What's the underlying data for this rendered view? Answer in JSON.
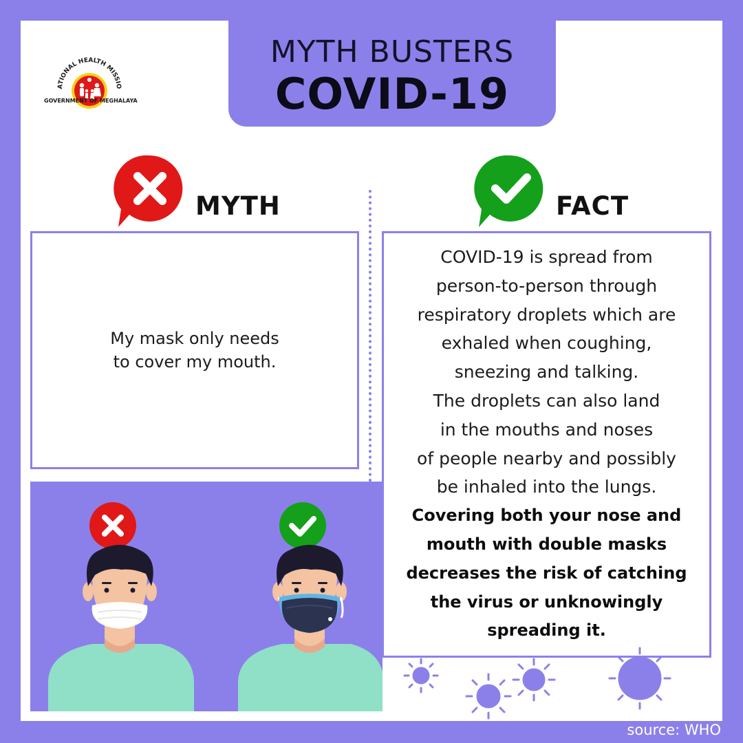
{
  "header": {
    "line1": "MYTH BUSTERS",
    "line2": "COVID-19"
  },
  "logo": {
    "icon": "national-health-mission-emblem",
    "arc_text": "NATIONAL HEALTH MISSION",
    "bottom_text": "GOVERNMENT OF MEGHALAYA"
  },
  "myth": {
    "label": "MYTH",
    "icon": "cross-icon",
    "text_line1": "My mask only needs",
    "text_line2": "to cover my mouth."
  },
  "fact": {
    "label": "FACT",
    "icon": "check-icon",
    "lines": [
      "COVID-19 is spread from",
      "person-to-person through",
      "respiratory droplets which are",
      "exhaled when coughing,",
      "sneezing and talking.",
      "The droplets can also land",
      "in the mouths and noses",
      "of people nearby and possibly",
      "be inhaled into the lungs."
    ],
    "bold_lines": [
      "Covering both your nose and",
      "mouth with double masks",
      "decreases the risk of catching",
      "the virus or unknowingly",
      "spreading it."
    ]
  },
  "illustration": {
    "wrong_icon": "cross-icon",
    "right_icon": "check-icon",
    "wrong_figure": "man-mask-mouth-only",
    "right_figure": "man-double-mask"
  },
  "source": "source: WHO",
  "colors": {
    "purple": "#8b80ea",
    "red": "#e01818",
    "green": "#14a01a",
    "shirt": "#8fe0c6",
    "skin": "#f3c3a2",
    "hair": "#1e1a2e"
  }
}
